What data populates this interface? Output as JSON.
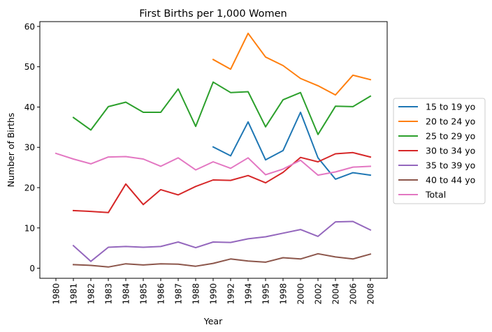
{
  "chart_data": {
    "type": "line",
    "title": "First Births per 1,000 Women",
    "xlabel": "Year",
    "ylabel": "Number of Births",
    "categories": [
      "1980",
      "1981",
      "1982",
      "1983",
      "1984",
      "1985",
      "1986",
      "1987",
      "1988",
      "1990",
      "1992",
      "1994",
      "1995",
      "1998",
      "2000",
      "2002",
      "2004",
      "2006",
      "2008"
    ],
    "ylim": [
      -2.5,
      61.2
    ],
    "yticks": [
      0,
      10,
      20,
      30,
      40,
      50,
      60
    ],
    "grid": false,
    "legend_position": "outside-right",
    "series": [
      {
        "name": "15 to 19 yo",
        "color": "#1f77b4",
        "values": [
          null,
          null,
          null,
          null,
          null,
          null,
          null,
          null,
          null,
          30.1,
          27.9,
          36.3,
          26.9,
          29.2,
          38.7,
          27.4,
          22.1,
          23.7,
          23.1
        ]
      },
      {
        "name": "20 to 24 yo",
        "color": "#ff7f0e",
        "values": [
          null,
          null,
          null,
          null,
          null,
          null,
          null,
          null,
          null,
          51.8,
          49.4,
          58.3,
          52.4,
          50.3,
          47.1,
          45.3,
          43.0,
          47.9,
          46.8
        ]
      },
      {
        "name": "25 to 29 yo",
        "color": "#2ca02c",
        "values": [
          null,
          37.4,
          34.3,
          40.1,
          41.2,
          38.7,
          38.7,
          44.5,
          35.2,
          46.2,
          43.6,
          43.8,
          35.1,
          41.8,
          43.6,
          33.2,
          40.2,
          40.1,
          42.7
        ]
      },
      {
        "name": "30 to 34 yo",
        "color": "#d62728",
        "values": [
          null,
          14.3,
          14.1,
          13.8,
          20.9,
          15.8,
          19.5,
          18.2,
          20.3,
          21.9,
          21.8,
          23.0,
          21.2,
          23.8,
          27.5,
          26.4,
          28.4,
          28.7,
          27.6
        ]
      },
      {
        "name": "35 to 39 yo",
        "color": "#9467bd",
        "values": [
          null,
          5.6,
          1.7,
          5.2,
          5.4,
          5.2,
          5.4,
          6.5,
          5.1,
          6.5,
          6.4,
          7.3,
          7.8,
          8.7,
          9.6,
          7.9,
          11.5,
          11.6,
          9.5
        ]
      },
      {
        "name": "40 to 44 yo",
        "color": "#8c564b",
        "values": [
          null,
          0.9,
          0.7,
          0.3,
          1.1,
          0.8,
          1.1,
          1.0,
          0.5,
          1.2,
          2.3,
          1.8,
          1.5,
          2.6,
          2.3,
          3.6,
          2.8,
          2.3,
          3.5
        ]
      },
      {
        "name": "Total",
        "color": "#e377c2",
        "values": [
          28.5,
          27.1,
          25.9,
          27.6,
          27.7,
          27.1,
          25.3,
          27.4,
          24.4,
          26.4,
          24.8,
          27.4,
          23.2,
          24.6,
          26.8,
          23.1,
          23.9,
          25.1,
          25.3
        ]
      }
    ]
  }
}
